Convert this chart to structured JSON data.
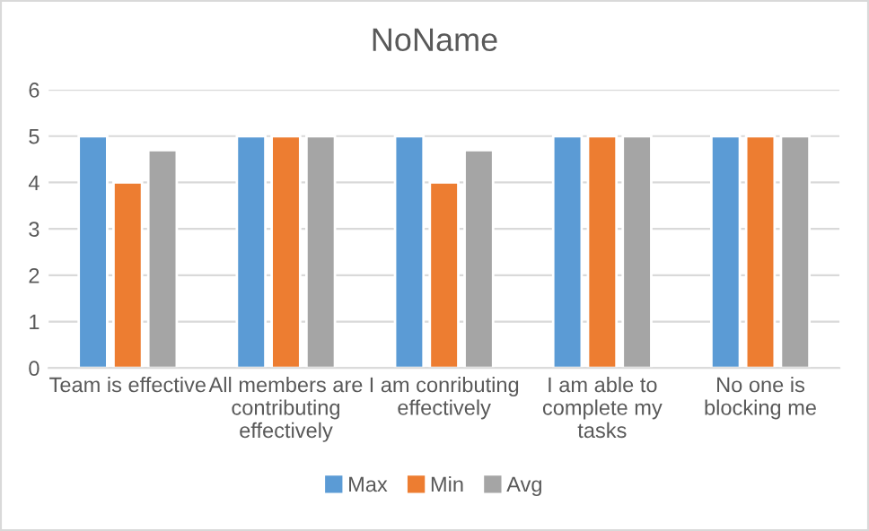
{
  "chart_data": {
    "type": "bar",
    "title": "NoName",
    "categories": [
      "Team is effective",
      "All members are\ncontributing\neffectively",
      "I am conributing\neffectively",
      "I am able to\ncomplete my\ntasks",
      "No one is\nblocking me"
    ],
    "series": [
      {
        "name": "Max",
        "color": "#5b9bd5",
        "values": [
          5,
          5,
          5,
          5,
          5
        ]
      },
      {
        "name": "Min",
        "color": "#ed7d31",
        "values": [
          4,
          5,
          4,
          5,
          5
        ]
      },
      {
        "name": "Avg",
        "color": "#a5a5a5",
        "values": [
          4.7,
          5,
          4.7,
          5,
          5
        ]
      }
    ],
    "ylim": [
      0,
      6
    ],
    "yticks": [
      0,
      1,
      2,
      3,
      4,
      5,
      6
    ],
    "grid": "y",
    "legend": "bottom"
  }
}
